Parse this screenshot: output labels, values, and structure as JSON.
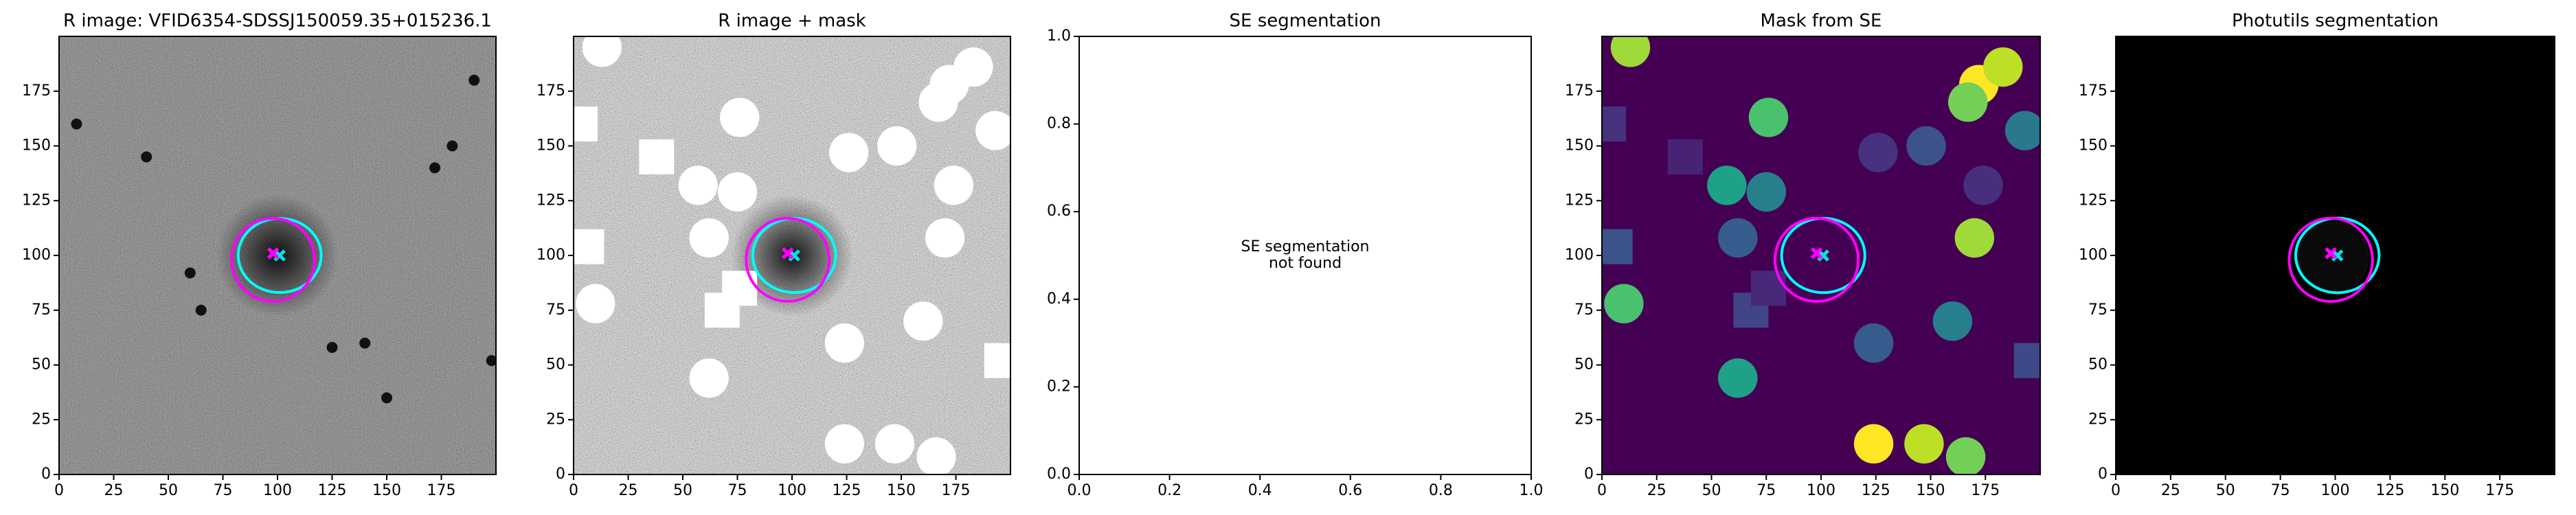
{
  "chart_data": [
    {
      "type": "image",
      "title": "R image: VFID6354-SDSSJ150059.35+015236.1",
      "xlim": [
        0,
        200
      ],
      "ylim": [
        0,
        200
      ],
      "xticks": [
        0,
        25,
        50,
        75,
        100,
        125,
        150,
        175
      ],
      "yticks": [
        0,
        25,
        50,
        75,
        100,
        125,
        150,
        175
      ]
    },
    {
      "type": "image",
      "title": "R image + mask",
      "xlim": [
        0,
        200
      ],
      "ylim": [
        0,
        200
      ],
      "xticks": [
        0,
        25,
        50,
        75,
        100,
        125,
        150,
        175
      ],
      "yticks": [
        0,
        25,
        50,
        75,
        100,
        125,
        150,
        175
      ]
    },
    {
      "type": "empty",
      "title": "SE segmentation",
      "annotation": [
        "SE segmentation",
        "not found"
      ],
      "xlim": [
        0,
        1
      ],
      "ylim": [
        0,
        1
      ],
      "xticks": [
        {
          "value": 0,
          "label": "0.0"
        },
        {
          "value": 0.2,
          "label": "0.2"
        },
        {
          "value": 0.4,
          "label": "0.4"
        },
        {
          "value": 0.6,
          "label": "0.6"
        },
        {
          "value": 0.8,
          "label": "0.8"
        },
        {
          "value": 1,
          "label": "1.0"
        }
      ],
      "yticks": [
        {
          "value": 0,
          "label": "0.0"
        },
        {
          "value": 0.2,
          "label": "0.2"
        },
        {
          "value": 0.4,
          "label": "0.4"
        },
        {
          "value": 0.6,
          "label": "0.6"
        },
        {
          "value": 0.8,
          "label": "0.8"
        },
        {
          "value": 1,
          "label": "1.0"
        }
      ]
    },
    {
      "type": "image",
      "title": "Mask from SE",
      "xlim": [
        0,
        200
      ],
      "ylim": [
        0,
        200
      ],
      "xticks": [
        0,
        25,
        50,
        75,
        100,
        125,
        150,
        175
      ],
      "yticks": [
        0,
        25,
        50,
        75,
        100,
        125,
        150,
        175
      ]
    },
    {
      "type": "image",
      "title": "Photutils segmentation",
      "xlim": [
        0,
        200
      ],
      "ylim": [
        0,
        200
      ],
      "xticks": [
        0,
        25,
        50,
        75,
        100,
        125,
        150,
        175
      ],
      "yticks": [
        0,
        25,
        50,
        75,
        100,
        125,
        150,
        175
      ]
    }
  ]
}
